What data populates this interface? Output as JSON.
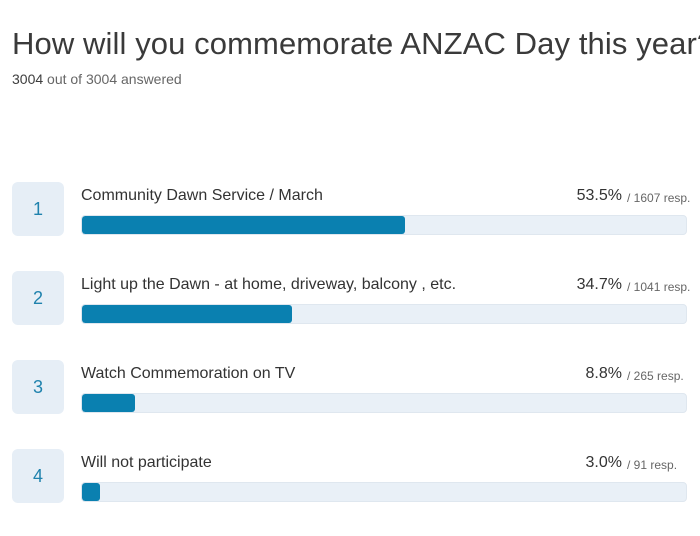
{
  "title": "How will you commemorate ANZAC Day this year?",
  "answered": {
    "count": "3004",
    "text": "out of 3004 answered"
  },
  "colors": {
    "bar_fill": "#0a80b0",
    "track": "#e9f0f7",
    "rank_box": "#e6eef6",
    "rank_text": "#1f82ad"
  },
  "chart_data": {
    "type": "bar",
    "orientation": "horizontal",
    "categories": [
      "Community Dawn Service / March",
      "Light up the Dawn - at home, driveway, balcony , etc.",
      "Watch Commemoration on TV",
      "Will not participate"
    ],
    "values": [
      53.5,
      34.7,
      8.8,
      3.0
    ],
    "responses": [
      1607,
      1041,
      265,
      91
    ],
    "xlim": [
      0,
      100
    ]
  },
  "rows": [
    {
      "rank": "1",
      "label": "Community Dawn Service / March",
      "pct": "53.5%",
      "resp": "/ 1607 resp."
    },
    {
      "rank": "2",
      "label": "Light up the Dawn - at home, driveway, balcony , etc.",
      "pct": "34.7%",
      "resp": "/ 1041 resp."
    },
    {
      "rank": "3",
      "label": "Watch Commemoration on TV",
      "pct": "8.8%",
      "resp": "/ 265 resp."
    },
    {
      "rank": "4",
      "label": "Will not participate",
      "pct": "3.0%",
      "resp": "/ 91 resp."
    }
  ]
}
